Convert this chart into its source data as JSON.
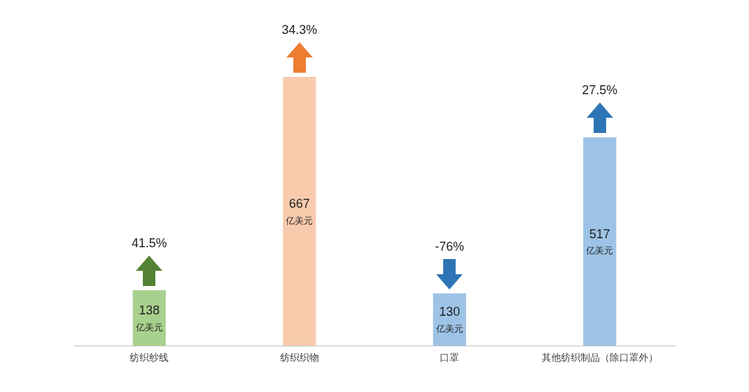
{
  "chart_data": {
    "type": "bar",
    "categories": [
      "纺织纱线",
      "纺织织物",
      "口罩",
      "其他纺织制品（除口罩外）"
    ],
    "values": [
      138,
      667,
      130,
      517
    ],
    "colors": [
      "#a9d18e",
      "#f8cbad",
      "#9dc3e6",
      "#9dc3e6"
    ],
    "value_labels": [
      "138\n亿美元",
      "667\n亿美元",
      "130\n亿美元",
      "517\n亿美元"
    ],
    "annotations": [
      "41.5%",
      "34.3%",
      "-76%",
      "27.5%"
    ],
    "grid": false,
    "legend": false
  }
}
